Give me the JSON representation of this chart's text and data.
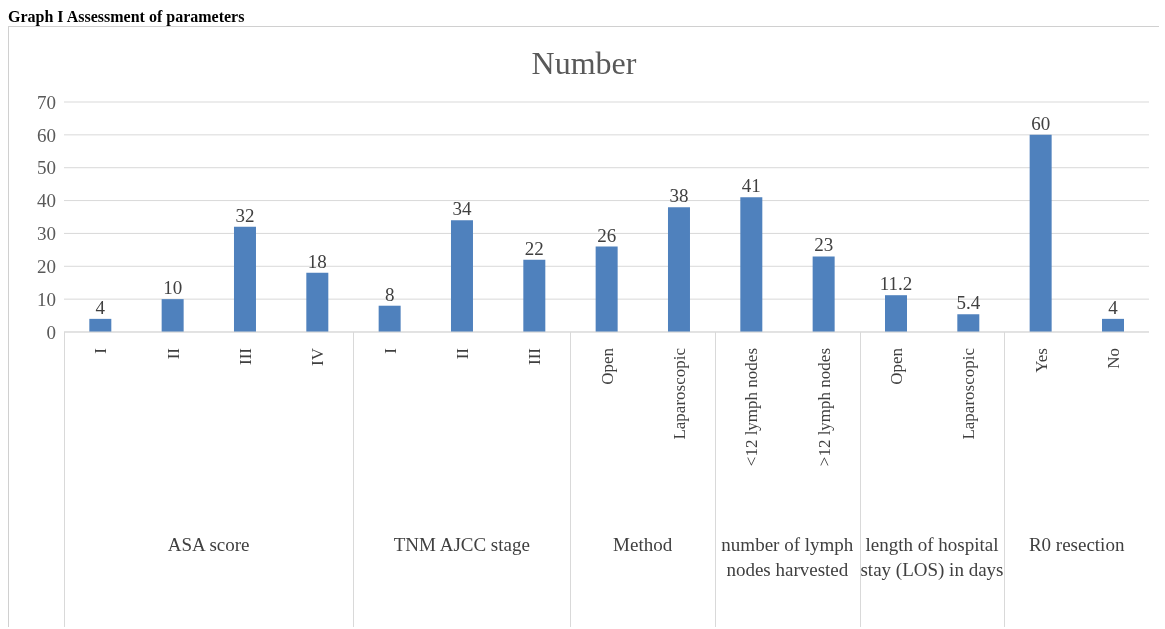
{
  "chart_data": {
    "type": "bar",
    "title": "Number",
    "categories": [
      "I",
      "II",
      "III",
      "IV",
      "I",
      "II",
      "III",
      "Open",
      "Laparoscopic",
      "<12 lymph nodes",
      ">12 lymph nodes",
      "Open",
      "Laparoscopic",
      "Yes",
      "No"
    ],
    "values": [
      4,
      10,
      32,
      18,
      8,
      34,
      22,
      26,
      38,
      41,
      23,
      11.2,
      5.4,
      60,
      4
    ],
    "color": "#4f81bd",
    "ylim": [
      0,
      70
    ],
    "yticks": [
      0,
      10,
      20,
      30,
      40,
      50,
      60,
      70
    ],
    "grid": "y",
    "data_labels": true,
    "annotations": [
      "Graph I Assessment of parameters",
      "ASA score",
      "TNM AJCC stage",
      "Method",
      "number of lymph nodes harvested",
      "length of hospital stay (LOS) in days",
      "R0 resection"
    ]
  }
}
